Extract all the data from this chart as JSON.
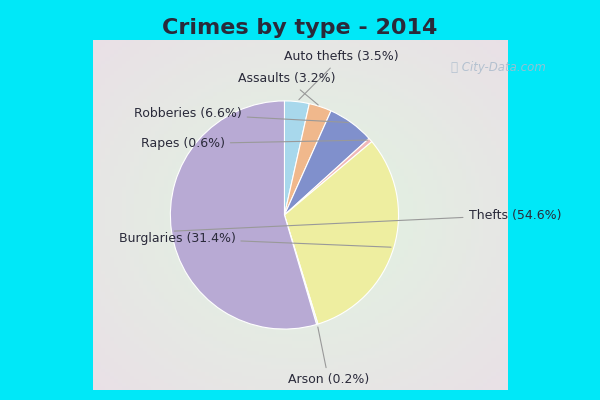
{
  "title": "Crimes by type - 2014",
  "slices": [
    {
      "label": "Thefts (54.6%)",
      "value": 54.6,
      "color": "#b8aad4"
    },
    {
      "label": "Burglaries (31.4%)",
      "value": 31.4,
      "color": "#eeeea0"
    },
    {
      "label": "Robberies (6.6%)",
      "value": 6.6,
      "color": "#8090cc"
    },
    {
      "label": "Auto thefts (3.5%)",
      "value": 3.5,
      "color": "#a8d8ec"
    },
    {
      "label": "Assaults (3.2%)",
      "value": 3.2,
      "color": "#f0b88c"
    },
    {
      "label": "Rapes (0.6%)",
      "value": 0.6,
      "color": "#f0b8b8"
    },
    {
      "label": "Arson (0.2%)",
      "value": 0.2,
      "color": "#d4dcc0"
    }
  ],
  "background_top": "#00e8f8",
  "background_main": "#c8e8d8",
  "title_fontsize": 16,
  "label_fontsize": 9,
  "title_color": "#2a2a3a",
  "label_color": "#2a2a3a"
}
